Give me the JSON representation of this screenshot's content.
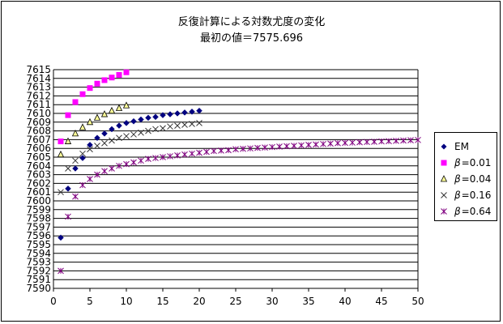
{
  "chart_data": {
    "type": "scatter",
    "title": "反復計算による対数尤度の変化",
    "subtitle": "最初の値＝7575.696",
    "xlim": [
      0,
      50
    ],
    "ylim": [
      7590,
      7615
    ],
    "x_ticks": [
      "0",
      "5",
      "10",
      "15",
      "20",
      "25",
      "30",
      "35",
      "40",
      "45",
      "50"
    ],
    "y_ticks": [
      "7590",
      "7591",
      "7592",
      "7593",
      "7594",
      "7595",
      "7596",
      "7597",
      "7598",
      "7599",
      "7600",
      "7601",
      "7602",
      "7603",
      "7604",
      "7605",
      "7606",
      "7607",
      "7608",
      "7609",
      "7610",
      "7611",
      "7612",
      "7613",
      "7614",
      "7615"
    ],
    "grid": "horizontal",
    "legend_position": "right",
    "series": [
      {
        "name": "EM",
        "marker": "diamond",
        "color": "#000080",
        "x": [
          1,
          2,
          3,
          4,
          5,
          6,
          7,
          8,
          9,
          10,
          11,
          12,
          13,
          14,
          15,
          16,
          17,
          18,
          19,
          20
        ],
        "y": [
          7595.8,
          7601.4,
          7603.7,
          7604.9,
          7606.4,
          7607.2,
          7607.7,
          7608.2,
          7608.6,
          7608.9,
          7609.1,
          7609.3,
          7609.5,
          7609.6,
          7609.8,
          7609.9,
          7610.0,
          7610.1,
          7610.2,
          7610.3
        ]
      },
      {
        "name": "=0.01",
        "greek": "β",
        "marker": "square",
        "color": "#ff00ff",
        "x": [
          1,
          2,
          3,
          4,
          5,
          6,
          7,
          8,
          9,
          10
        ],
        "y": [
          7606.8,
          7609.8,
          7611.3,
          7612.2,
          7612.9,
          7613.4,
          7613.8,
          7614.1,
          7614.4,
          7614.7
        ]
      },
      {
        "name": "=0.04",
        "greek": "β",
        "marker": "triangle",
        "color": "#ffff99",
        "x": [
          1,
          2,
          3,
          4,
          5,
          6,
          7,
          8,
          9,
          10
        ],
        "y": [
          7605.3,
          7606.8,
          7607.7,
          7608.4,
          7609.0,
          7609.5,
          7609.9,
          7610.3,
          7610.6,
          7610.9
        ]
      },
      {
        "name": "=0.16",
        "greek": "β",
        "marker": "x",
        "color": "#333333",
        "x": [
          1,
          2,
          3,
          4,
          5,
          6,
          7,
          8,
          9,
          10,
          11,
          12,
          13,
          14,
          15,
          16,
          17,
          18,
          19,
          20
        ],
        "y": [
          7601.0,
          7603.7,
          7604.6,
          7605.4,
          7605.9,
          7606.3,
          7606.6,
          7606.9,
          7607.2,
          7607.4,
          7607.6,
          7607.8,
          7608.0,
          7608.2,
          7608.3,
          7608.5,
          7608.6,
          7608.7,
          7608.8,
          7608.9
        ]
      },
      {
        "name": "=0.64",
        "greek": "β",
        "marker": "star",
        "color": "#800080",
        "x": [
          1,
          2,
          3,
          4,
          5,
          6,
          7,
          8,
          9,
          10,
          11,
          12,
          13,
          14,
          15,
          16,
          17,
          18,
          19,
          20,
          21,
          22,
          23,
          24,
          25,
          26,
          27,
          28,
          29,
          30,
          31,
          32,
          33,
          34,
          35,
          36,
          37,
          38,
          39,
          40,
          41,
          42,
          43,
          44,
          45,
          46,
          47,
          48,
          49,
          50
        ],
        "y": [
          7592.0,
          7598.2,
          7600.5,
          7601.8,
          7602.5,
          7603.0,
          7603.4,
          7603.7,
          7604.0,
          7604.2,
          7604.4,
          7604.6,
          7604.8,
          7604.9,
          7605.0,
          7605.1,
          7605.2,
          7605.3,
          7605.4,
          7605.5,
          7605.6,
          7605.7,
          7605.75,
          7605.8,
          7605.9,
          7605.95,
          7606.0,
          7606.05,
          7606.1,
          7606.15,
          7606.2,
          7606.25,
          7606.3,
          7606.35,
          7606.4,
          7606.45,
          7606.5,
          7606.55,
          7606.6,
          7606.63,
          7606.66,
          7606.7,
          7606.73,
          7606.76,
          7606.8,
          7606.83,
          7606.86,
          7606.9,
          7606.93,
          7606.96
        ]
      }
    ]
  }
}
